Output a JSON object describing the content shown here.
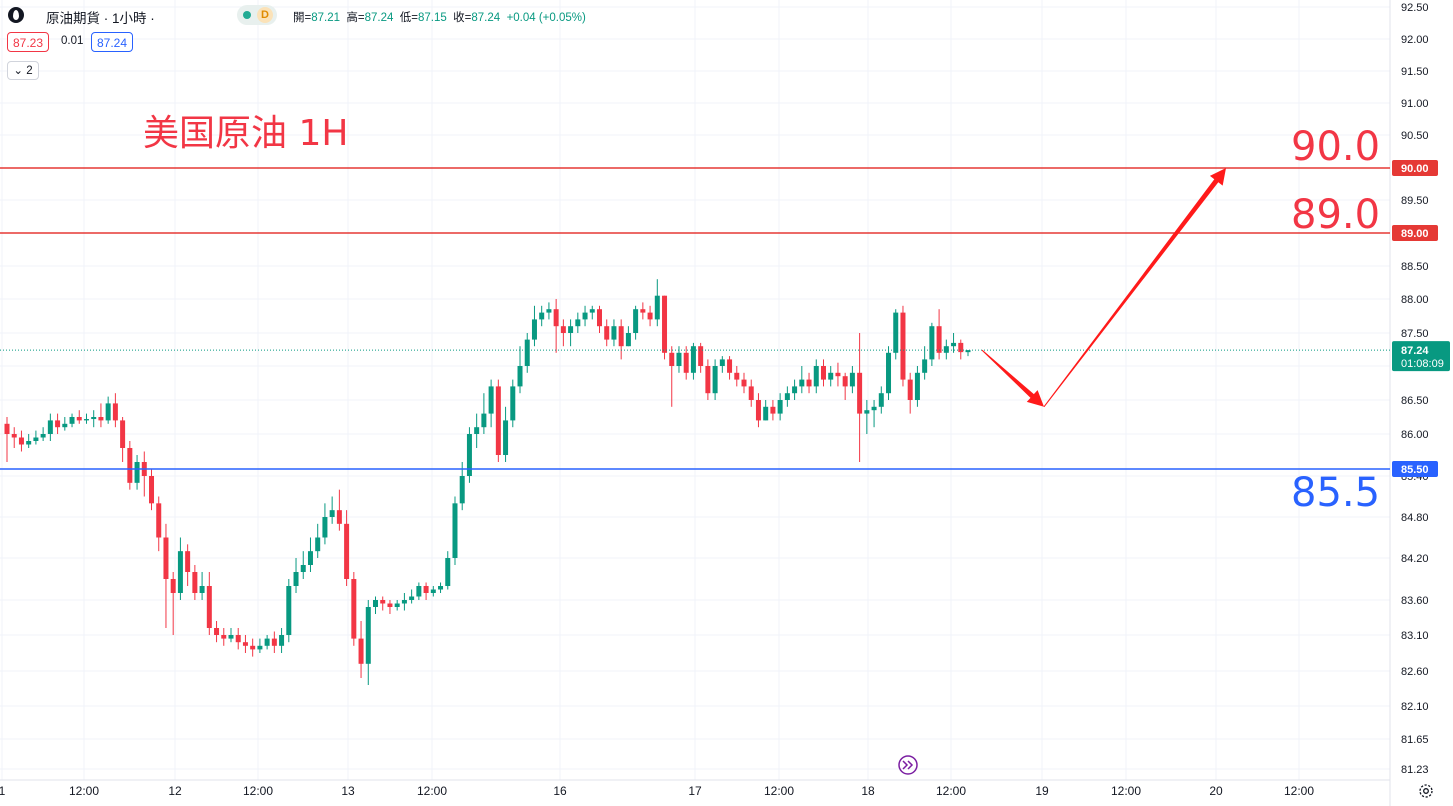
{
  "header": {
    "symbol_title": "原油期貨 · 1小時 ·",
    "delay_badge": "D",
    "ohlc": {
      "open_label": "開=",
      "open": "87.21",
      "high_label": "高=",
      "high": "87.24",
      "low_label": "低=",
      "low": "87.15",
      "close_label": "收=",
      "close": "87.24",
      "change": "+0.04 (+0.05%)"
    },
    "bid": "87.23",
    "spread": "0.01",
    "ask": "87.24",
    "indicators_toggle": "2"
  },
  "annotations": {
    "title": "美国原油 1H",
    "level_90": "90.0",
    "level_89": "89.0",
    "level_85_5": "85.5"
  },
  "colors": {
    "up": "#089981",
    "down": "#f23645",
    "resistance": "#e53935",
    "support": "#2962ff",
    "arrow": "#ff1a1a"
  },
  "chart_data": {
    "type": "candlestick",
    "title": "美国原油 1H",
    "y_ticks": [
      "92.50",
      "92.00",
      "91.50",
      "91.00",
      "90.50",
      "90.00",
      "89.50",
      "89.00",
      "88.50",
      "88.00",
      "87.50",
      "87.00",
      "86.50",
      "86.00",
      "85.40",
      "84.80",
      "84.20",
      "83.60",
      "83.10",
      "82.60",
      "82.10",
      "81.65",
      "81.23"
    ],
    "x_ticks": [
      "1",
      "12:00",
      "12",
      "12:00",
      "13",
      "12:00",
      "16",
      "17",
      "12:00",
      "18",
      "12:00",
      "19",
      "12:00",
      "20",
      "12:00"
    ],
    "horizontal_lines": [
      {
        "label": "90.00",
        "value": 90.0,
        "color": "#e53935"
      },
      {
        "label": "89.00",
        "value": 89.0,
        "color": "#e53935"
      },
      {
        "label": "85.50",
        "value": 85.5,
        "color": "#2962ff"
      }
    ],
    "current_price": {
      "label": "87.24",
      "countdown": "01:08:09",
      "value": 87.24
    },
    "projection_path": [
      87.24,
      86.4,
      90.0
    ],
    "candles": [
      [
        86.15,
        86.0,
        86.25,
        85.6
      ],
      [
        86.0,
        85.95,
        86.1,
        85.8
      ],
      [
        85.95,
        85.85,
        86.05,
        85.75
      ],
      [
        85.85,
        85.9,
        86.0,
        85.8
      ],
      [
        85.9,
        85.95,
        86.05,
        85.85
      ],
      [
        85.95,
        86.0,
        86.1,
        85.9
      ],
      [
        86.0,
        86.2,
        86.3,
        85.9
      ],
      [
        86.2,
        86.1,
        86.3,
        86.0
      ],
      [
        86.1,
        86.15,
        86.25,
        86.05
      ],
      [
        86.15,
        86.25,
        86.3,
        86.1
      ],
      [
        86.25,
        86.2,
        86.35,
        86.15
      ],
      [
        86.2,
        86.22,
        86.3,
        86.15
      ],
      [
        86.22,
        86.25,
        86.35,
        86.1
      ],
      [
        86.25,
        86.2,
        86.45,
        86.1
      ],
      [
        86.2,
        86.45,
        86.55,
        86.15
      ],
      [
        86.45,
        86.2,
        86.6,
        86.1
      ],
      [
        86.2,
        85.8,
        86.25,
        85.6
      ],
      [
        85.8,
        85.3,
        85.9,
        85.2
      ],
      [
        85.3,
        85.6,
        85.7,
        85.2
      ],
      [
        85.6,
        85.4,
        85.75,
        85.1
      ],
      [
        85.4,
        85.0,
        85.5,
        84.9
      ],
      [
        85.0,
        84.5,
        85.1,
        84.3
      ],
      [
        84.5,
        83.9,
        84.7,
        83.2
      ],
      [
        83.9,
        83.7,
        84.0,
        83.1
      ],
      [
        83.7,
        84.3,
        84.5,
        83.6
      ],
      [
        84.3,
        84.0,
        84.4,
        83.8
      ],
      [
        84.0,
        83.7,
        84.1,
        83.6
      ],
      [
        83.7,
        83.8,
        84.0,
        83.6
      ],
      [
        83.8,
        83.2,
        84.0,
        83.1
      ],
      [
        83.2,
        83.1,
        83.3,
        83.0
      ],
      [
        83.1,
        83.05,
        83.2,
        82.95
      ],
      [
        83.05,
        83.1,
        83.2,
        83.0
      ],
      [
        83.1,
        83.0,
        83.2,
        82.9
      ],
      [
        83.0,
        82.95,
        83.1,
        82.85
      ],
      [
        82.95,
        82.9,
        83.05,
        82.8
      ],
      [
        82.9,
        82.95,
        83.05,
        82.85
      ],
      [
        82.95,
        83.05,
        83.1,
        82.9
      ],
      [
        83.05,
        82.95,
        83.15,
        82.85
      ],
      [
        82.95,
        83.1,
        83.2,
        82.85
      ],
      [
        83.1,
        83.8,
        83.9,
        83.0
      ],
      [
        83.8,
        84.0,
        84.2,
        83.7
      ],
      [
        84.0,
        84.1,
        84.3,
        83.9
      ],
      [
        84.1,
        84.3,
        84.5,
        84.0
      ],
      [
        84.3,
        84.5,
        84.7,
        84.2
      ],
      [
        84.5,
        84.8,
        85.0,
        84.4
      ],
      [
        84.8,
        84.9,
        85.1,
        84.7
      ],
      [
        84.9,
        84.7,
        85.2,
        84.6
      ],
      [
        84.7,
        83.9,
        84.9,
        83.8
      ],
      [
        83.9,
        83.05,
        84.0,
        82.95
      ],
      [
        83.05,
        82.7,
        83.3,
        82.5
      ],
      [
        82.7,
        83.5,
        83.6,
        82.4
      ],
      [
        83.5,
        83.6,
        83.65,
        83.4
      ],
      [
        83.6,
        83.55,
        83.65,
        83.45
      ],
      [
        83.55,
        83.5,
        83.6,
        83.4
      ],
      [
        83.5,
        83.55,
        83.6,
        83.45
      ],
      [
        83.55,
        83.6,
        83.7,
        83.45
      ],
      [
        83.6,
        83.65,
        83.75,
        83.55
      ],
      [
        83.65,
        83.8,
        83.85,
        83.6
      ],
      [
        83.8,
        83.7,
        83.85,
        83.6
      ],
      [
        83.7,
        83.75,
        83.8,
        83.65
      ],
      [
        83.75,
        83.8,
        83.85,
        83.7
      ],
      [
        83.8,
        84.2,
        84.3,
        83.75
      ],
      [
        84.2,
        85.0,
        85.1,
        84.1
      ],
      [
        85.0,
        85.4,
        85.6,
        84.9
      ],
      [
        85.4,
        86.0,
        86.1,
        85.3
      ],
      [
        86.0,
        86.1,
        86.3,
        85.8
      ],
      [
        86.1,
        86.3,
        86.6,
        86.0
      ],
      [
        86.3,
        86.7,
        86.8,
        86.1
      ],
      [
        86.7,
        85.7,
        86.8,
        85.6
      ],
      [
        85.7,
        86.2,
        86.4,
        85.6
      ],
      [
        86.2,
        86.7,
        86.8,
        86.1
      ],
      [
        86.7,
        87.0,
        87.3,
        86.6
      ],
      [
        87.0,
        87.4,
        87.5,
        86.9
      ],
      [
        87.4,
        87.7,
        87.9,
        87.3
      ],
      [
        87.7,
        87.8,
        87.9,
        87.6
      ],
      [
        87.8,
        87.85,
        87.95,
        87.7
      ],
      [
        87.85,
        87.6,
        88.0,
        87.2
      ],
      [
        87.6,
        87.5,
        87.7,
        87.3
      ],
      [
        87.5,
        87.6,
        87.7,
        87.3
      ],
      [
        87.6,
        87.7,
        87.8,
        87.5
      ],
      [
        87.7,
        87.8,
        87.9,
        87.6
      ],
      [
        87.8,
        87.85,
        87.9,
        87.7
      ],
      [
        87.85,
        87.6,
        87.9,
        87.5
      ],
      [
        87.6,
        87.4,
        87.7,
        87.3
      ],
      [
        87.4,
        87.6,
        87.7,
        87.3
      ],
      [
        87.6,
        87.3,
        87.7,
        87.1
      ],
      [
        87.3,
        87.5,
        87.6,
        87.3
      ],
      [
        87.5,
        87.85,
        87.9,
        87.4
      ],
      [
        87.85,
        87.8,
        87.95,
        87.7
      ],
      [
        87.8,
        87.7,
        87.9,
        87.6
      ],
      [
        87.7,
        88.05,
        88.3,
        87.6
      ],
      [
        88.05,
        87.2,
        88.05,
        87.1
      ],
      [
        87.2,
        87.0,
        87.3,
        86.4
      ],
      [
        87.0,
        87.2,
        87.3,
        86.9
      ],
      [
        87.2,
        86.9,
        87.3,
        86.8
      ],
      [
        86.9,
        87.3,
        87.35,
        86.8
      ],
      [
        87.3,
        87.0,
        87.35,
        86.9
      ],
      [
        87.0,
        86.6,
        87.1,
        86.5
      ],
      [
        86.6,
        87.0,
        87.1,
        86.5
      ],
      [
        87.0,
        87.1,
        87.15,
        86.9
      ],
      [
        87.1,
        86.9,
        87.15,
        86.8
      ],
      [
        86.9,
        86.8,
        87.0,
        86.7
      ],
      [
        86.8,
        86.7,
        86.9,
        86.6
      ],
      [
        86.7,
        86.5,
        86.8,
        86.4
      ],
      [
        86.5,
        86.2,
        86.6,
        86.1
      ],
      [
        86.2,
        86.4,
        86.5,
        86.2
      ],
      [
        86.4,
        86.3,
        86.5,
        86.2
      ],
      [
        86.3,
        86.5,
        86.6,
        86.2
      ],
      [
        86.5,
        86.6,
        86.7,
        86.4
      ],
      [
        86.6,
        86.7,
        86.8,
        86.5
      ],
      [
        86.7,
        86.8,
        87.0,
        86.6
      ],
      [
        86.8,
        86.7,
        86.9,
        86.6
      ],
      [
        86.7,
        87.0,
        87.1,
        86.6
      ],
      [
        87.0,
        86.8,
        87.1,
        86.7
      ],
      [
        86.8,
        86.9,
        87.0,
        86.7
      ],
      [
        86.9,
        86.85,
        87.05,
        86.7
      ],
      [
        86.85,
        86.7,
        86.9,
        86.5
      ],
      [
        86.7,
        86.9,
        87.0,
        86.6
      ],
      [
        86.9,
        86.3,
        87.5,
        85.6
      ],
      [
        86.3,
        86.35,
        86.5,
        86.0
      ],
      [
        86.35,
        86.4,
        86.5,
        86.1
      ],
      [
        86.4,
        86.6,
        86.7,
        86.3
      ],
      [
        86.6,
        87.2,
        87.3,
        86.5
      ],
      [
        87.2,
        87.8,
        87.85,
        87.1
      ],
      [
        87.8,
        86.8,
        87.9,
        86.7
      ],
      [
        86.8,
        86.5,
        86.9,
        86.3
      ],
      [
        86.5,
        86.9,
        87.0,
        86.4
      ],
      [
        86.9,
        87.1,
        87.3,
        86.8
      ],
      [
        87.1,
        87.6,
        87.65,
        87.0
      ],
      [
        87.6,
        87.2,
        87.85,
        87.1
      ],
      [
        87.2,
        87.3,
        87.4,
        87.1
      ],
      [
        87.3,
        87.35,
        87.5,
        87.2
      ],
      [
        87.35,
        87.21,
        87.4,
        87.1
      ],
      [
        87.21,
        87.24,
        87.24,
        87.15
      ]
    ]
  }
}
